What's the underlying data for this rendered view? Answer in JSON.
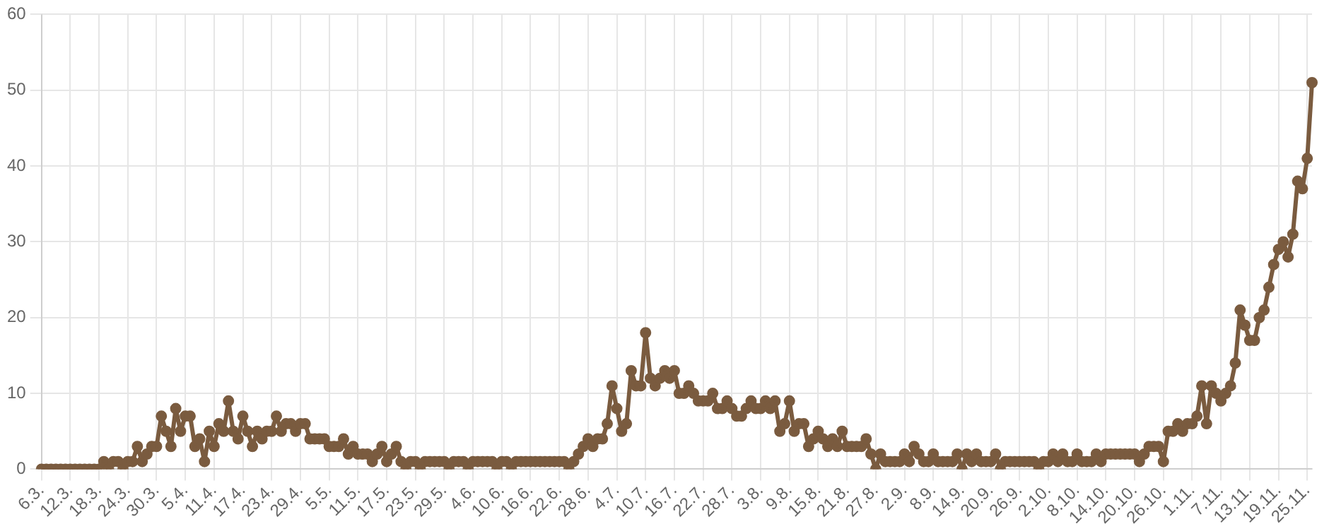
{
  "chart_data": {
    "type": "line",
    "categories": [
      "6.3.",
      null,
      null,
      null,
      null,
      null,
      "12.3.",
      null,
      null,
      null,
      null,
      null,
      "18.3.",
      null,
      null,
      null,
      null,
      null,
      "24.3.",
      null,
      null,
      null,
      null,
      null,
      "30.3.",
      null,
      null,
      null,
      null,
      null,
      "5.4.",
      null,
      null,
      null,
      null,
      null,
      "11.4.",
      null,
      null,
      null,
      null,
      null,
      "17.4.",
      null,
      null,
      null,
      null,
      null,
      "23.4.",
      null,
      null,
      null,
      null,
      null,
      "29.4.",
      null,
      null,
      null,
      null,
      null,
      "5.5.",
      null,
      null,
      null,
      null,
      null,
      "11.5.",
      null,
      null,
      null,
      null,
      null,
      "17.5.",
      null,
      null,
      null,
      null,
      null,
      "23.5.",
      null,
      null,
      null,
      null,
      null,
      "29.5.",
      null,
      null,
      null,
      null,
      null,
      "4.6.",
      null,
      null,
      null,
      null,
      null,
      "10.6.",
      null,
      null,
      null,
      null,
      null,
      "16.6.",
      null,
      null,
      null,
      null,
      null,
      "22.6.",
      null,
      null,
      null,
      null,
      null,
      "28.6.",
      null,
      null,
      null,
      null,
      null,
      "4.7.",
      null,
      null,
      null,
      null,
      null,
      "10.7.",
      null,
      null,
      null,
      null,
      null,
      "16.7.",
      null,
      null,
      null,
      null,
      null,
      "22.7.",
      null,
      null,
      null,
      null,
      null,
      "28.7.",
      null,
      null,
      null,
      null,
      null,
      "3.8.",
      null,
      null,
      null,
      null,
      null,
      "9.8.",
      null,
      null,
      null,
      null,
      null,
      "15.8.",
      null,
      null,
      null,
      null,
      null,
      "21.8.",
      null,
      null,
      null,
      null,
      null,
      "27.8.",
      null,
      null,
      null,
      null,
      null,
      "2.9.",
      null,
      null,
      null,
      null,
      null,
      "8.9.",
      null,
      null,
      null,
      null,
      null,
      "14.9.",
      null,
      null,
      null,
      null,
      null,
      "20.9.",
      null,
      null,
      null,
      null,
      null,
      "26.9.",
      null,
      null,
      null,
      null,
      null,
      "2.10.",
      null,
      null,
      null,
      null,
      null,
      "8.10.",
      null,
      null,
      null,
      null,
      null,
      "14.10.",
      null,
      null,
      null,
      null,
      null,
      "20.10.",
      null,
      null,
      null,
      null,
      null,
      "26.10.",
      null,
      null,
      null,
      null,
      null,
      "1.11.",
      null,
      null,
      null,
      null,
      null,
      "7.11.",
      null,
      null,
      null,
      null,
      null,
      "13.11.",
      null,
      null,
      null,
      null,
      null,
      "19.11.",
      null,
      null,
      null,
      null,
      null,
      "25.11.",
      null
    ],
    "values": [
      0,
      0,
      0,
      0,
      0,
      0,
      0,
      0,
      0,
      0,
      0,
      0,
      0,
      1,
      0,
      1,
      1,
      0,
      1,
      1,
      3,
      1,
      2,
      3,
      3,
      7,
      5,
      3,
      8,
      5,
      7,
      7,
      3,
      4,
      1,
      5,
      3,
      6,
      5,
      9,
      5,
      4,
      7,
      5,
      3,
      5,
      4,
      5,
      5,
      7,
      5,
      6,
      6,
      5,
      6,
      6,
      4,
      4,
      4,
      4,
      3,
      3,
      3,
      4,
      2,
      3,
      2,
      2,
      2,
      1,
      2,
      3,
      1,
      2,
      3,
      1,
      0,
      1,
      1,
      0,
      1,
      1,
      1,
      1,
      1,
      0,
      1,
      1,
      1,
      0,
      1,
      1,
      1,
      1,
      1,
      0,
      1,
      1,
      0,
      1,
      1,
      1,
      1,
      1,
      1,
      1,
      1,
      1,
      1,
      1,
      0,
      1,
      2,
      3,
      4,
      3,
      4,
      4,
      6,
      11,
      8,
      5,
      6,
      13,
      11,
      11,
      18,
      12,
      11,
      12,
      13,
      12,
      13,
      10,
      10,
      11,
      10,
      9,
      9,
      9,
      10,
      8,
      8,
      9,
      8,
      7,
      7,
      8,
      9,
      8,
      8,
      9,
      8,
      9,
      5,
      6,
      9,
      5,
      6,
      6,
      3,
      4,
      5,
      4,
      3,
      4,
      3,
      5,
      3,
      3,
      3,
      3,
      4,
      2,
      0,
      2,
      1,
      1,
      1,
      1,
      2,
      1,
      3,
      2,
      1,
      1,
      2,
      1,
      1,
      1,
      1,
      2,
      0,
      2,
      1,
      2,
      1,
      1,
      1,
      2,
      0,
      1,
      1,
      1,
      1,
      1,
      1,
      1,
      0,
      1,
      1,
      2,
      1,
      2,
      1,
      1,
      2,
      1,
      1,
      1,
      2,
      1,
      2,
      2,
      2,
      2,
      2,
      2,
      2,
      1,
      2,
      3,
      3,
      3,
      1,
      5,
      5,
      6,
      5,
      6,
      6,
      7,
      11,
      6,
      11,
      10,
      9,
      10,
      11,
      14,
      21,
      19,
      17,
      17,
      20,
      21,
      24,
      27,
      29,
      30,
      28,
      31,
      38,
      37,
      41,
      51
    ],
    "color": "#7a5b3f",
    "ylim": [
      0,
      60
    ],
    "yticks": [
      0,
      10,
      20,
      30,
      40,
      50,
      60
    ],
    "grid": true,
    "marker": "circle"
  }
}
